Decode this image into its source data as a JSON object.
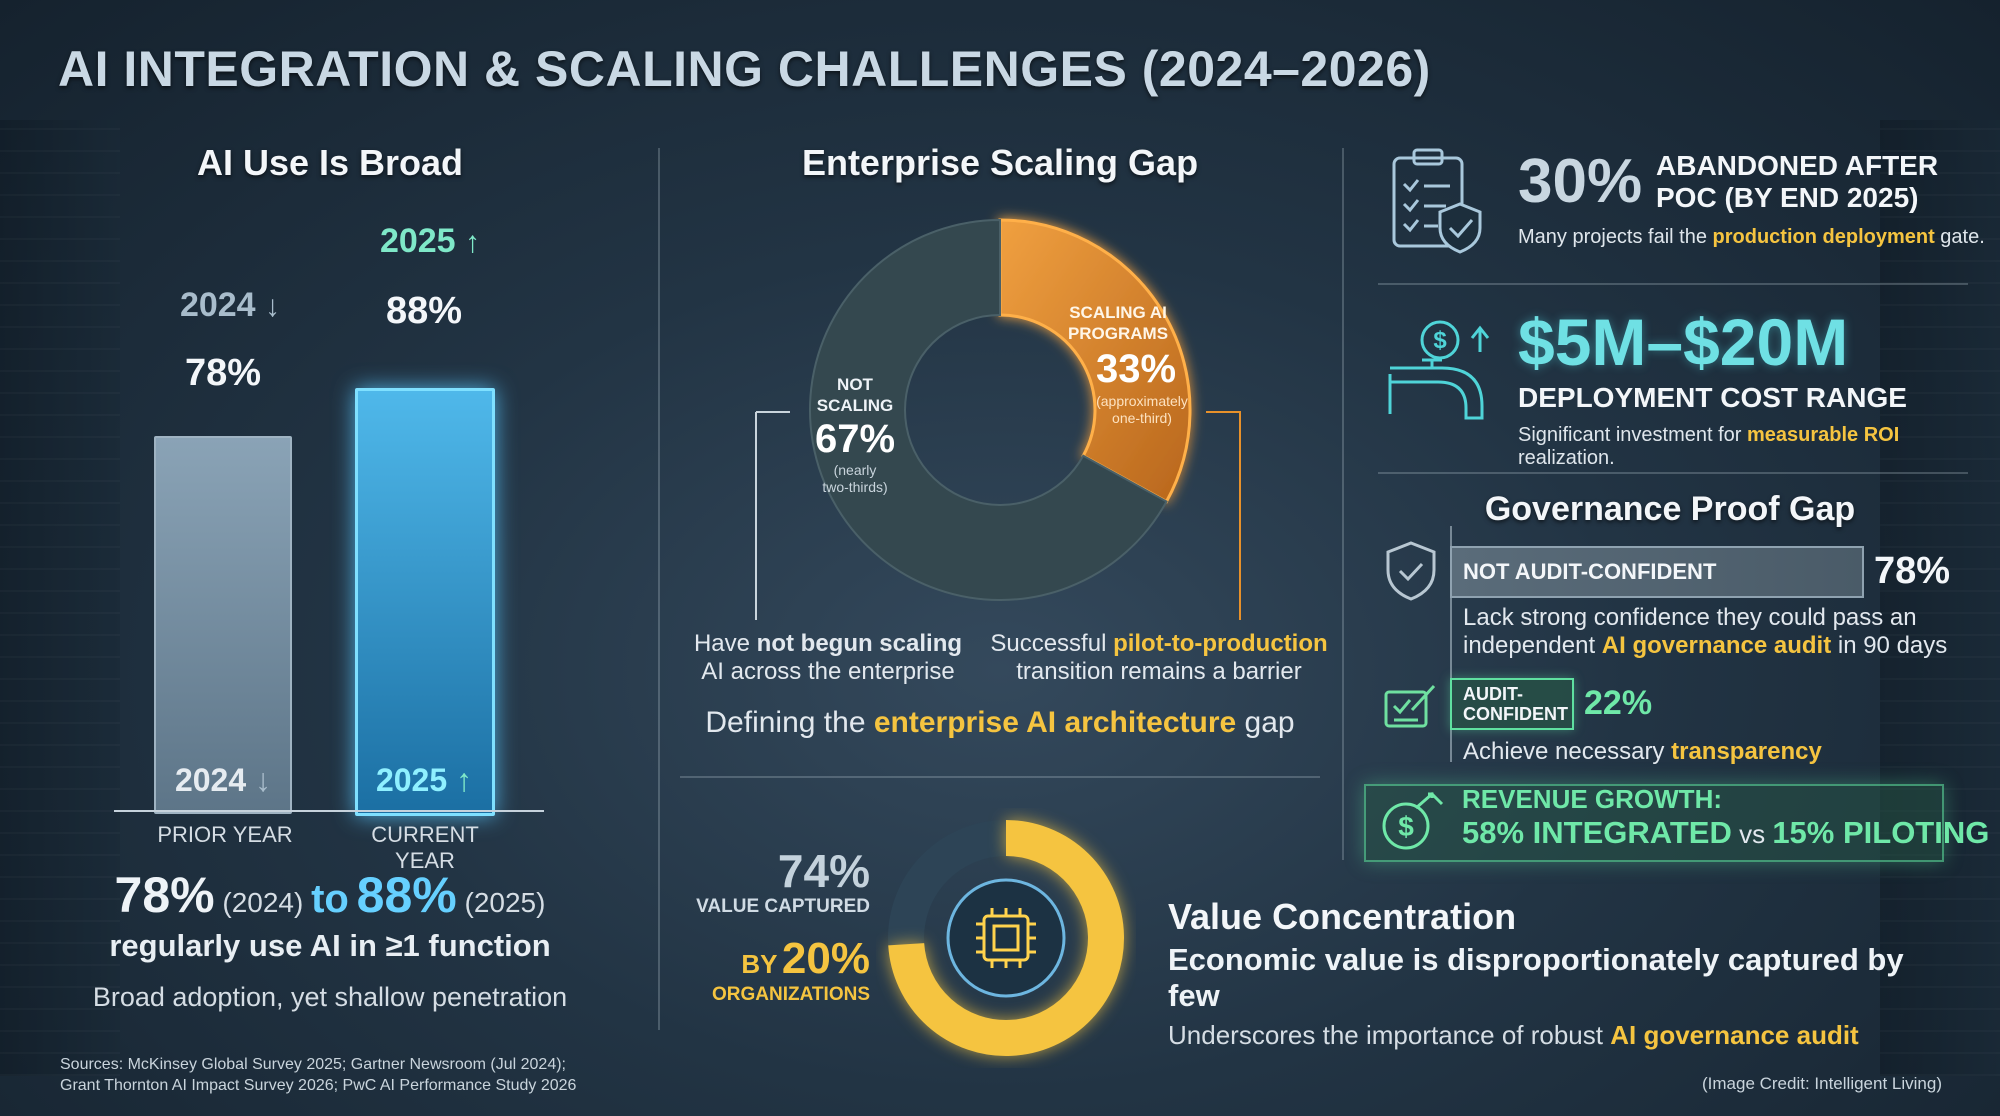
{
  "title": "AI INTEGRATION & SCALING CHALLENGES (2024–2026)",
  "left": {
    "heading": "AI Use Is Broad",
    "bar_2024_top_year": "2024",
    "bar_2025_top_year": "2025",
    "bar_2024_value_label": "78%",
    "bar_2025_value_label": "88%",
    "bar_2024_bottom_year": "2024",
    "bar_2025_bottom_year": "2025",
    "x_prior": "PRIOR YEAR",
    "x_current": "CURRENT YEAR",
    "summary_big_a": "78%",
    "summary_small_a": "(2024)",
    "summary_to": "to",
    "summary_big_b": "88%",
    "summary_small_b": "(2025)",
    "summary_line2": "regularly use AI in ≥1 function",
    "summary_line3": "Broad adoption, yet shallow penetration"
  },
  "middle": {
    "heading": "Enterprise Scaling Gap",
    "not_scaling_label_1": "NOT",
    "not_scaling_label_2": "SCALING",
    "not_scaling_pct": "67%",
    "not_scaling_note_1": "(nearly",
    "not_scaling_note_2": "two-thirds)",
    "scaling_label_1": "SCALING AI",
    "scaling_label_2": "PROGRAMS",
    "scaling_pct": "33%",
    "scaling_note_1": "(approximately",
    "scaling_note_2": "one-third)",
    "left_caption_pre": "Have ",
    "left_caption_bold": "not begun scaling",
    "left_caption_2": "AI across the enterprise",
    "right_caption_pre": "Successful ",
    "right_caption_bold": "pilot-to-production",
    "right_caption_2": "transition remains a barrier",
    "define_pre": "Defining the ",
    "define_bold": "enterprise AI architecture",
    "define_post": " gap"
  },
  "value": {
    "pct_74": "74%",
    "value_captured": "VALUE CAPTURED",
    "by": "BY",
    "pct_20": "20%",
    "organizations": "ORGANIZATIONS",
    "heading": "Value Concentration",
    "line2": "Economic value is disproportionately captured by few",
    "line3_pre": "Underscores the importance of robust ",
    "line3_bold": "AI governance audit"
  },
  "right": {
    "abandon_pct": "30%",
    "abandon_l1": "ABANDONED AFTER",
    "abandon_l2": "POC (BY END 2025)",
    "abandon_note_pre": "Many projects fail the ",
    "abandon_note_bold": "production deployment",
    "abandon_note_post": " gate.",
    "cost_range": "$5M–$20M",
    "cost_label": "DEPLOYMENT COST RANGE",
    "cost_note_pre": "Significant investment for ",
    "cost_note_bold": "measurable ROI",
    "cost_note_post": " realization.",
    "gov_heading": "Governance Proof Gap",
    "not_audit_label": "NOT AUDIT-CONFIDENT",
    "not_audit_pct": "78%",
    "not_audit_note_1": "Lack strong confidence they could pass an",
    "not_audit_note_2_pre": "independent ",
    "not_audit_note_2_bold": "AI governance audit",
    "not_audit_note_2_post": " in 90 days",
    "audit_label_1": "AUDIT-",
    "audit_label_2": "CONFIDENT",
    "audit_pct": "22%",
    "audit_note_pre": "Achieve necessary ",
    "audit_note_bold": "transparency",
    "rev_l1": "REVENUE GROWTH:",
    "rev_l2_a": "58% INTEGRATED",
    "rev_l2_vs": " vs ",
    "rev_l2_b": "15% PILOTING"
  },
  "sources_1": "Sources: McKinsey Global Survey 2025; Gartner Newsroom (Jul 2024);",
  "sources_2": "Grant Thornton AI Impact Survey 2026; PwC AI Performance Study 2026",
  "credit": "(Image Credit: Intelligent Living)",
  "chart_data": [
    {
      "type": "bar",
      "title": "AI Use Is Broad",
      "categories": [
        "PRIOR YEAR",
        "CURRENT YEAR"
      ],
      "series": [
        {
          "values": [
            78,
            88
          ]
        }
      ],
      "ylim": [
        0,
        100
      ]
    },
    {
      "type": "pie",
      "title": "Enterprise Scaling Gap",
      "labels": [
        "NOT SCALING",
        "SCALING AI PROGRAMS"
      ],
      "values": [
        67,
        33
      ]
    },
    {
      "type": "pie",
      "labels": [
        "VALUE CAPTURED BY 20% ORGANIZATIONS"
      ],
      "values": [
        74
      ]
    },
    {
      "type": "bar",
      "title": "Governance Proof Gap",
      "categories": [
        "NOT AUDIT-CONFIDENT",
        "AUDIT-CONFIDENT"
      ],
      "values": [
        78,
        22
      ]
    }
  ],
  "colors": {
    "gold": "#f5c440",
    "orange": "#e8912a",
    "cyan": "#4fc9ff",
    "green": "#5fe0a0"
  }
}
